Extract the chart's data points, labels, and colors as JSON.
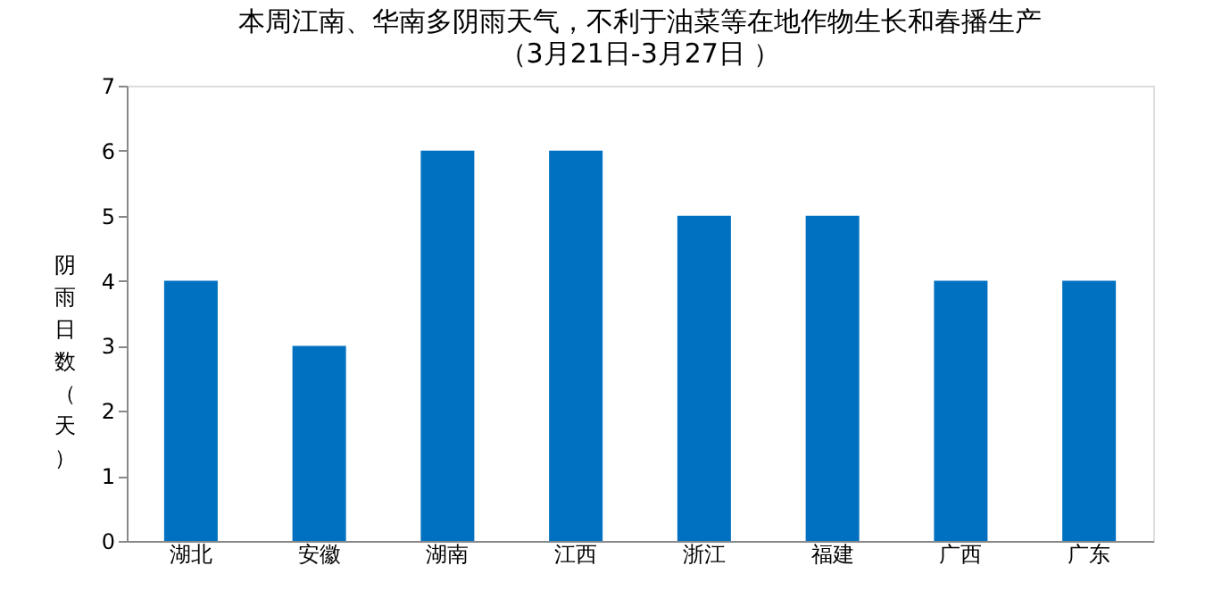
{
  "chart_data": {
    "type": "bar",
    "title": "本周江南、华南多阴雨天气，不利于油菜等在地作物生长和春播生产",
    "subtitle": "（3月21日-3月27日 ）",
    "ylabel": "阴雨日数（天）",
    "categories": [
      "湖北",
      "安徽",
      "湖南",
      "江西",
      "浙江",
      "福建",
      "广西",
      "广东"
    ],
    "values": [
      4,
      3,
      6,
      6,
      5,
      5,
      4,
      4
    ],
    "color": "#0070c0",
    "ylim": [
      0,
      7
    ],
    "yticks": [
      0,
      1,
      2,
      3,
      4,
      5,
      6,
      7
    ],
    "grid": false
  }
}
